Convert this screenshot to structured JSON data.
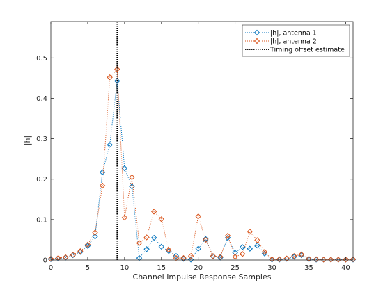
{
  "chart_data": {
    "type": "line",
    "title": "",
    "xlabel": "Channel Impulse Response Samples",
    "ylabel": "|h|",
    "xlim": [
      0,
      41
    ],
    "ylim": [
      0,
      0.59
    ],
    "xticks": [
      0,
      5,
      10,
      15,
      20,
      25,
      30,
      35,
      40
    ],
    "xtick_labels": [
      "0",
      "5",
      "10",
      "15",
      "20",
      "25",
      "30",
      "35",
      "40"
    ],
    "yticks": [
      0,
      0.1,
      0.2,
      0.3,
      0.4,
      0.5
    ],
    "ytick_labels": [
      "0",
      "0.1",
      "0.2",
      "0.3",
      "0.4",
      "0.5"
    ],
    "grid": false,
    "legend_position": "top-right",
    "x": [
      0,
      1,
      2,
      3,
      4,
      5,
      6,
      7,
      8,
      9,
      10,
      11,
      12,
      13,
      14,
      15,
      16,
      17,
      18,
      19,
      20,
      21,
      22,
      23,
      24,
      25,
      26,
      27,
      28,
      29,
      30,
      31,
      32,
      33,
      34,
      35,
      36,
      37,
      38,
      39,
      40,
      41
    ],
    "series": [
      {
        "name": "|h|, antenna 1",
        "color": "#0072bd",
        "marker": "diamond",
        "linestyle": "dotted",
        "values": [
          0.002,
          0.004,
          0.006,
          0.012,
          0.02,
          0.035,
          0.058,
          0.217,
          0.285,
          0.443,
          0.227,
          0.182,
          0.005,
          0.027,
          0.055,
          0.033,
          0.022,
          0.01,
          0.003,
          0.001,
          0.028,
          0.052,
          0.009,
          0.006,
          0.055,
          0.018,
          0.032,
          0.028,
          0.036,
          0.016,
          0.001,
          0.001,
          0.003,
          0.008,
          0.012,
          0.002,
          0.001,
          0.001,
          0.001,
          0.001,
          0.001,
          0.001
        ]
      },
      {
        "name": "|h|, antenna 2",
        "color": "#d95319",
        "marker": "diamond",
        "linestyle": "dotted",
        "values": [
          0.003,
          0.005,
          0.007,
          0.013,
          0.022,
          0.038,
          0.068,
          0.184,
          0.452,
          0.472,
          0.105,
          0.205,
          0.042,
          0.056,
          0.12,
          0.101,
          0.025,
          0.005,
          0.005,
          0.01,
          0.108,
          0.05,
          0.01,
          0.008,
          0.06,
          0.008,
          0.015,
          0.07,
          0.049,
          0.02,
          0.002,
          0.002,
          0.004,
          0.01,
          0.014,
          0.003,
          0.002,
          0.001,
          0.001,
          0.001,
          0.001,
          0.002
        ]
      }
    ],
    "vlines": [
      {
        "name": "Timing offset estimate",
        "x": 9,
        "color": "#000000",
        "linestyle": "dotted"
      }
    ]
  }
}
